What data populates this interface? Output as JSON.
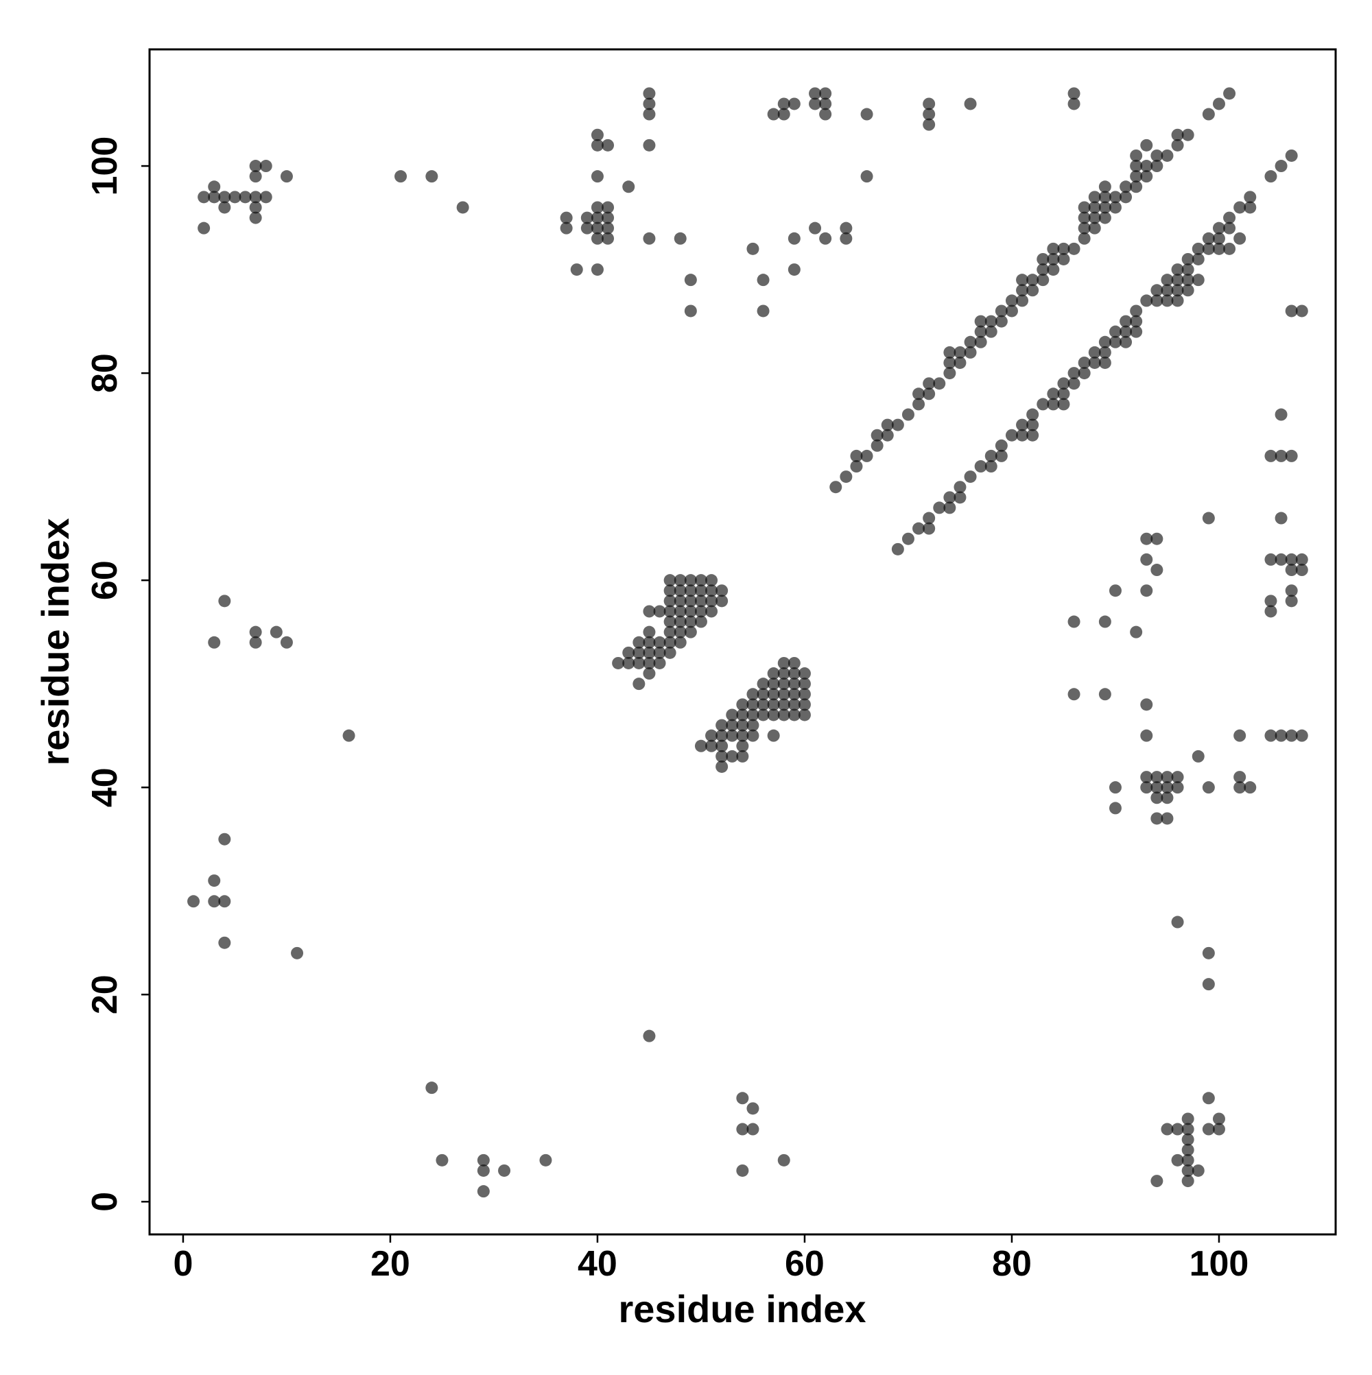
{
  "chart_data": {
    "type": "scatter",
    "x_label": "residue index",
    "y_label": "residue index",
    "xlim": [
      -3.24,
      111.26
    ],
    "ylim": [
      -3.16,
      111.26
    ],
    "xticks": [
      0,
      20,
      40,
      60,
      80,
      100
    ],
    "yticks": [
      0,
      20,
      40,
      60,
      80,
      100
    ],
    "grid": false,
    "alpha": 0.6,
    "series": [
      {
        "color": "#000000",
        "x": [
          1,
          3,
          3,
          4,
          4,
          4,
          11,
          16,
          3,
          4,
          7,
          7,
          9,
          10,
          2,
          2,
          3,
          3,
          4,
          4,
          5,
          6,
          7,
          7,
          7,
          7,
          7,
          8,
          8,
          10,
          21,
          24,
          27,
          24,
          25,
          29,
          29,
          29,
          31,
          35,
          45,
          54,
          55,
          54,
          55,
          54,
          58,
          37,
          37,
          38,
          39,
          39,
          40,
          40,
          40,
          40,
          40,
          40,
          40,
          40,
          41,
          41,
          41,
          41,
          41,
          43,
          45,
          45,
          45,
          45,
          45,
          48,
          49,
          49,
          55,
          56,
          56,
          57,
          58,
          58,
          59,
          59,
          59,
          61,
          61,
          61,
          62,
          62,
          62,
          62,
          64,
          64,
          66,
          66,
          72,
          72,
          72,
          76,
          86,
          86,
          63,
          64,
          65,
          65,
          66,
          67,
          67,
          68,
          68,
          69,
          70,
          71,
          71,
          72,
          72,
          73,
          74,
          74,
          74,
          75,
          75,
          76,
          76,
          77,
          77,
          77,
          78,
          78,
          79,
          79,
          80,
          80,
          81,
          81,
          81,
          82,
          82,
          83,
          83,
          83,
          84,
          84,
          84,
          85,
          85,
          86,
          87,
          87,
          87,
          87,
          88,
          88,
          88,
          88,
          89,
          89,
          89,
          89,
          90,
          90,
          91,
          91,
          92,
          92,
          92,
          92,
          93,
          93,
          93,
          94,
          94,
          95,
          96,
          96,
          97,
          99,
          100,
          101,
          69,
          70,
          71,
          72,
          72,
          73,
          74,
          74,
          75,
          75,
          76,
          77,
          78,
          78,
          79,
          79,
          80,
          81,
          81,
          82,
          82,
          82,
          83,
          84,
          84,
          85,
          85,
          85,
          86,
          86,
          87,
          87,
          88,
          88,
          89,
          89,
          89,
          90,
          90,
          91,
          91,
          91,
          92,
          92,
          92,
          93,
          94,
          94,
          95,
          95,
          95,
          96,
          96,
          96,
          96,
          97,
          97,
          97,
          97,
          98,
          98,
          98,
          99,
          99,
          100,
          100,
          100,
          101,
          101,
          101,
          102,
          102,
          103,
          103,
          105,
          106,
          107,
          105,
          106,
          107,
          106,
          107,
          108,
          99,
          106,
          105,
          106,
          107,
          107,
          108,
          108,
          107,
          107,
          105,
          105,
          105,
          106,
          107,
          108,
          102,
          86,
          89,
          92,
          90,
          93,
          93,
          93,
          94,
          94,
          86,
          89,
          93,
          93,
          98,
          90,
          90,
          93,
          93,
          94,
          94,
          94,
          94,
          95,
          95,
          95,
          95,
          96,
          96,
          99,
          102,
          102,
          103,
          96,
          99,
          99,
          99,
          95,
          96,
          97,
          97,
          97,
          97,
          96,
          97,
          97,
          98,
          97,
          94,
          99,
          100,
          100,
          47,
          48,
          49,
          50,
          51,
          47,
          48,
          49,
          50,
          51,
          52,
          47,
          48,
          49,
          50,
          51,
          52,
          45,
          46,
          47,
          48,
          49,
          50,
          51,
          47,
          48,
          49,
          50,
          45,
          47,
          48,
          49,
          44,
          45,
          46,
          47,
          48,
          43,
          44,
          45,
          46,
          47,
          42,
          43,
          44,
          45,
          46,
          45,
          44,
          58,
          59,
          57,
          58,
          59,
          60,
          56,
          57,
          58,
          59,
          60,
          55,
          56,
          57,
          58,
          59,
          60,
          54,
          55,
          56,
          57,
          58,
          59,
          60,
          53,
          54,
          55,
          56,
          57,
          58,
          59,
          60,
          52,
          53,
          54,
          55,
          51,
          52,
          53,
          54,
          55,
          57,
          50,
          51,
          52,
          54,
          52,
          53,
          54,
          52
        ],
        "values": [
          29,
          31,
          29,
          29,
          35,
          25,
          24,
          45,
          54,
          58,
          55,
          54,
          55,
          54,
          94,
          97,
          98,
          97,
          97,
          96,
          97,
          97,
          97,
          96,
          95,
          99,
          100,
          100,
          97,
          99,
          99,
          99,
          96,
          11,
          4,
          4,
          3,
          1,
          3,
          4,
          16,
          10,
          9,
          7,
          7,
          3,
          4,
          95,
          94,
          90,
          95,
          94,
          96,
          95,
          94,
          93,
          90,
          99,
          103,
          102,
          96,
          95,
          94,
          93,
          102,
          98,
          107,
          106,
          105,
          102,
          93,
          93,
          89,
          86,
          92,
          89,
          86,
          105,
          106,
          105,
          106,
          93,
          90,
          107,
          106,
          94,
          107,
          106,
          105,
          93,
          94,
          93,
          105,
          99,
          106,
          105,
          104,
          106,
          107,
          106,
          69,
          70,
          71,
          72,
          72,
          73,
          74,
          74,
          75,
          75,
          76,
          77,
          78,
          78,
          79,
          79,
          80,
          81,
          82,
          81,
          82,
          82,
          83,
          83,
          84,
          85,
          84,
          85,
          85,
          86,
          86,
          87,
          87,
          88,
          89,
          88,
          89,
          89,
          90,
          91,
          90,
          91,
          92,
          91,
          92,
          92,
          93,
          94,
          95,
          96,
          94,
          95,
          96,
          97,
          95,
          96,
          97,
          98,
          96,
          97,
          97,
          98,
          98,
          99,
          100,
          101,
          99,
          100,
          102,
          100,
          101,
          101,
          102,
          103,
          103,
          105,
          106,
          107,
          63,
          64,
          65,
          65,
          66,
          67,
          67,
          68,
          68,
          69,
          70,
          71,
          71,
          72,
          72,
          73,
          74,
          74,
          75,
          74,
          75,
          76,
          77,
          77,
          78,
          77,
          78,
          79,
          79,
          80,
          80,
          81,
          81,
          82,
          81,
          82,
          83,
          83,
          84,
          83,
          84,
          85,
          84,
          85,
          86,
          87,
          87,
          88,
          87,
          88,
          89,
          87,
          88,
          89,
          90,
          88,
          89,
          90,
          91,
          89,
          91,
          92,
          92,
          93,
          92,
          93,
          94,
          92,
          94,
          95,
          93,
          96,
          96,
          97,
          99,
          100,
          101,
          72,
          72,
          72,
          76,
          86,
          86,
          66,
          66,
          62,
          62,
          62,
          61,
          62,
          61,
          59,
          58,
          58,
          57,
          45,
          45,
          45,
          45,
          45,
          56,
          56,
          55,
          59,
          59,
          62,
          64,
          64,
          61,
          49,
          49,
          48,
          45,
          43,
          40,
          38,
          41,
          40,
          41,
          40,
          39,
          37,
          41,
          40,
          39,
          37,
          41,
          40,
          40,
          41,
          40,
          40,
          27,
          24,
          21,
          10,
          7,
          7,
          8,
          7,
          6,
          5,
          4,
          4,
          3,
          3,
          2,
          2,
          7,
          8,
          7,
          60,
          60,
          60,
          60,
          60,
          59,
          59,
          59,
          59,
          59,
          59,
          58,
          58,
          58,
          58,
          58,
          58,
          57,
          57,
          57,
          57,
          57,
          57,
          57,
          56,
          56,
          56,
          56,
          55,
          55,
          55,
          55,
          54,
          54,
          54,
          54,
          54,
          53,
          53,
          53,
          53,
          53,
          52,
          52,
          52,
          52,
          52,
          51,
          50,
          52,
          52,
          51,
          51,
          51,
          51,
          50,
          50,
          50,
          50,
          50,
          49,
          49,
          49,
          49,
          49,
          49,
          48,
          48,
          48,
          48,
          48,
          48,
          48,
          47,
          47,
          47,
          47,
          47,
          47,
          47,
          47,
          46,
          46,
          46,
          46,
          45,
          45,
          45,
          45,
          45,
          45,
          44,
          44,
          44,
          44,
          43,
          43,
          43,
          42
        ]
      }
    ]
  }
}
